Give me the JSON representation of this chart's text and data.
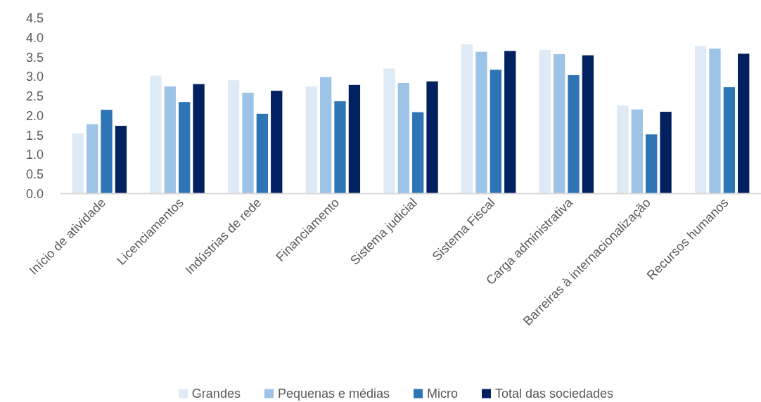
{
  "chart_data": {
    "type": "bar",
    "categories": [
      "Início de atividade",
      "Licenciamentos",
      "Indústrias de rede",
      "Financiamento",
      "Sistema judicial",
      "Sistema Fiscal",
      "Carga administrativa",
      "Barreiras à internacionalização",
      "Recursos humanos"
    ],
    "series": [
      {
        "name": "Grandes",
        "color": "#deebf7",
        "values": [
          1.55,
          3.03,
          2.91,
          2.75,
          3.21,
          3.83,
          3.69,
          2.26,
          3.79
        ]
      },
      {
        "name": "Pequenas e médias",
        "color": "#9dc3e6",
        "values": [
          1.78,
          2.75,
          2.59,
          2.99,
          2.84,
          3.64,
          3.58,
          2.16,
          3.72
        ]
      },
      {
        "name": "Micro",
        "color": "#2e75b6",
        "values": [
          2.15,
          2.35,
          2.05,
          2.37,
          2.09,
          3.18,
          3.04,
          1.52,
          2.73
        ]
      },
      {
        "name": "Total das sociedades",
        "color": "#002060",
        "values": [
          1.74,
          2.81,
          2.64,
          2.79,
          2.88,
          3.66,
          3.55,
          2.1,
          3.59
        ]
      }
    ],
    "ylim": [
      0,
      4.5
    ],
    "yticks": [
      {
        "value": 0,
        "label": "0.0"
      },
      0.5,
      {
        "value": 1,
        "label": "1.0"
      },
      1.5,
      {
        "value": 2,
        "label": "2.0"
      },
      2.5,
      {
        "value": 3,
        "label": "3.0"
      },
      3.5,
      {
        "value": 4,
        "label": "4.0"
      },
      4.5
    ],
    "legend": "bottom"
  }
}
